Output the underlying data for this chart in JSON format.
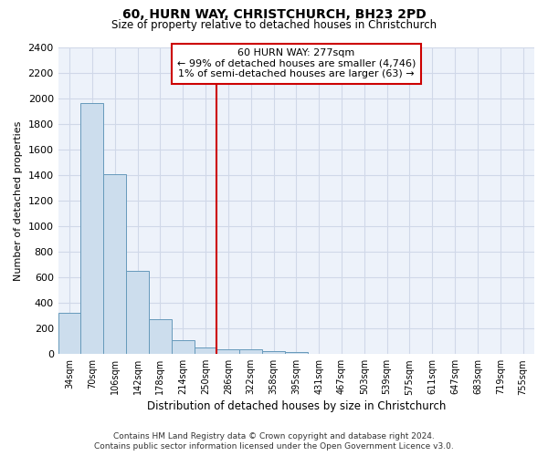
{
  "title": "60, HURN WAY, CHRISTCHURCH, BH23 2PD",
  "subtitle": "Size of property relative to detached houses in Christchurch",
  "xlabel": "Distribution of detached houses by size in Christchurch",
  "ylabel": "Number of detached properties",
  "bar_color": "#ccdded",
  "bar_edge_color": "#6699bb",
  "background_color": "#edf2fa",
  "grid_color": "#d0d8e8",
  "categories": [
    "34sqm",
    "70sqm",
    "106sqm",
    "142sqm",
    "178sqm",
    "214sqm",
    "250sqm",
    "286sqm",
    "322sqm",
    "358sqm",
    "395sqm",
    "431sqm",
    "467sqm",
    "503sqm",
    "539sqm",
    "575sqm",
    "611sqm",
    "647sqm",
    "683sqm",
    "719sqm",
    "755sqm"
  ],
  "values": [
    325,
    1960,
    1405,
    650,
    275,
    105,
    50,
    38,
    38,
    22,
    14,
    0,
    0,
    0,
    0,
    0,
    0,
    0,
    0,
    0,
    0
  ],
  "ylim": [
    0,
    2400
  ],
  "yticks": [
    0,
    200,
    400,
    600,
    800,
    1000,
    1200,
    1400,
    1600,
    1800,
    2000,
    2200,
    2400
  ],
  "vline_x_index": 6.5,
  "vline_color": "#cc0000",
  "annotation_text": "60 HURN WAY: 277sqm\n← 99% of detached houses are smaller (4,746)\n1% of semi-detached houses are larger (63) →",
  "annotation_box_color": "#cc0000",
  "footer_line1": "Contains HM Land Registry data © Crown copyright and database right 2024.",
  "footer_line2": "Contains public sector information licensed under the Open Government Licence v3.0."
}
